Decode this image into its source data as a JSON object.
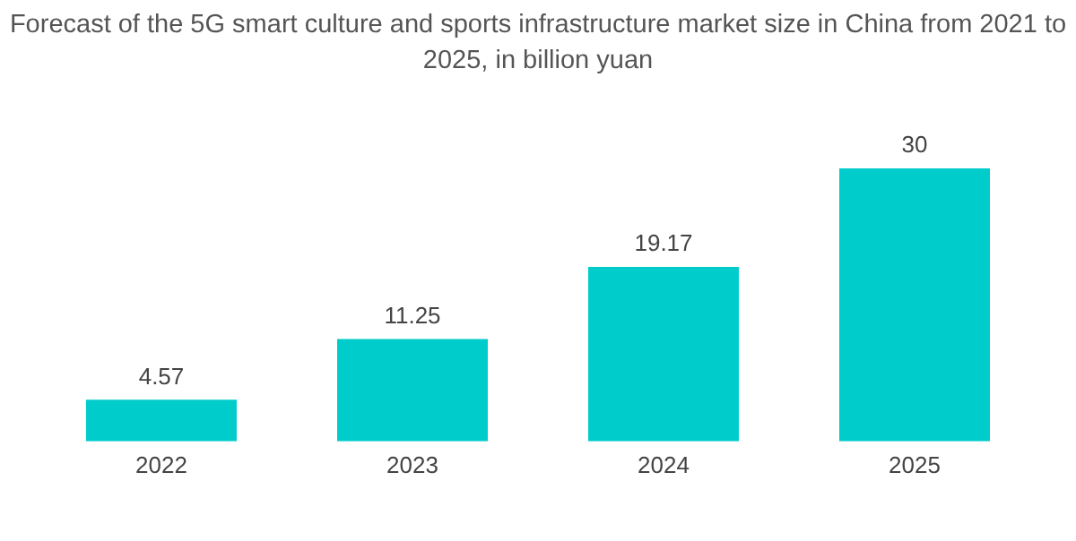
{
  "chart_data": {
    "type": "bar",
    "title": "Forecast of the 5G smart culture and sports infrastructure market size in China from 2021 to 2025, in billion yuan",
    "categories": [
      "2022",
      "2023",
      "2024",
      "2025"
    ],
    "values": [
      4.57,
      11.25,
      19.17,
      30
    ],
    "color": "#00cccc",
    "data_labels": true,
    "grid": false,
    "legend": false
  }
}
